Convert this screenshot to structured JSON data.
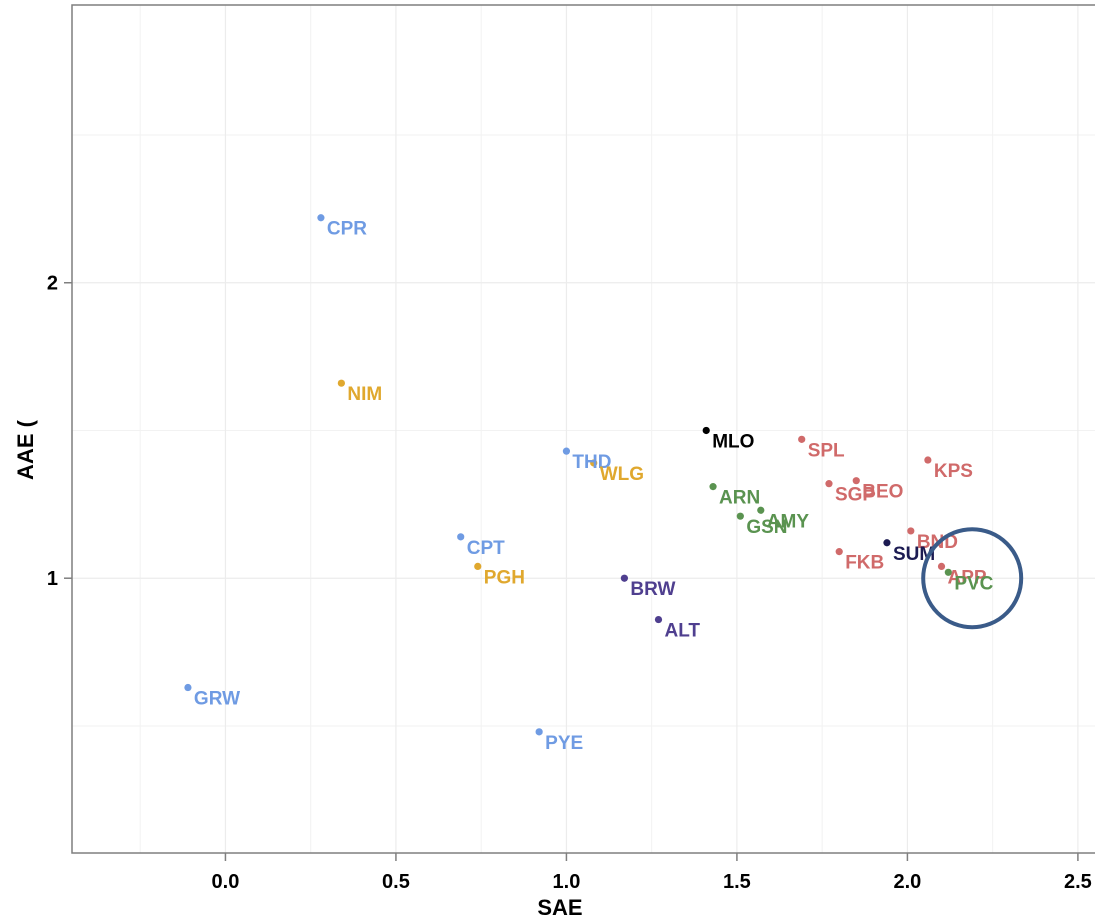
{
  "chart_data": {
    "type": "scatter",
    "title": "",
    "xlabel": "SAE",
    "ylabel": "AAE (",
    "xlim": [
      -0.45,
      2.6
    ],
    "ylim": [
      0.07,
      2.94
    ],
    "x_ticks": [
      0.0,
      0.5,
      1.0,
      1.5,
      2.0,
      2.5
    ],
    "x_tick_labels": [
      "0.0",
      "0.5",
      "1.0",
      "1.5",
      "2.0",
      "2.5"
    ],
    "y_ticks": [
      1,
      2
    ],
    "y_tick_labels": [
      "1",
      "2"
    ],
    "grid": true,
    "legend": "none",
    "colors": {
      "blue": "#6f9be3",
      "orange": "#e0a82e",
      "black": "#000000",
      "red": "#d06a6a",
      "green": "#5a9350",
      "purple": "#4f3f8f",
      "navy": "#1c1b52",
      "circle": "#3a5b89"
    },
    "points": [
      {
        "label": "CPR",
        "x": 0.28,
        "y": 2.22,
        "color": "blue"
      },
      {
        "label": "NIM",
        "x": 0.34,
        "y": 1.66,
        "color": "orange"
      },
      {
        "label": "THD",
        "x": 1.0,
        "y": 1.43,
        "color": "blue"
      },
      {
        "label": "WLG",
        "x": 1.08,
        "y": 1.39,
        "color": "orange"
      },
      {
        "label": "MLO",
        "x": 1.41,
        "y": 1.5,
        "color": "black"
      },
      {
        "label": "SPL",
        "x": 1.69,
        "y": 1.47,
        "color": "red"
      },
      {
        "label": "KPS",
        "x": 2.06,
        "y": 1.4,
        "color": "red"
      },
      {
        "label": "ARN",
        "x": 1.43,
        "y": 1.31,
        "color": "green"
      },
      {
        "label": "SGP",
        "x": 1.77,
        "y": 1.32,
        "color": "red"
      },
      {
        "label": "BEO",
        "x": 1.85,
        "y": 1.33,
        "color": "red"
      },
      {
        "label": "AMY",
        "x": 1.57,
        "y": 1.23,
        "color": "green"
      },
      {
        "label": "GSN",
        "x": 1.51,
        "y": 1.21,
        "color": "green"
      },
      {
        "label": "CPT",
        "x": 0.69,
        "y": 1.14,
        "color": "blue"
      },
      {
        "label": "PGH",
        "x": 0.74,
        "y": 1.04,
        "color": "orange"
      },
      {
        "label": "BND",
        "x": 2.01,
        "y": 1.16,
        "color": "red"
      },
      {
        "label": "FKB",
        "x": 1.8,
        "y": 1.09,
        "color": "red"
      },
      {
        "label": "SUM",
        "x": 1.94,
        "y": 1.12,
        "color": "navy"
      },
      {
        "label": "APP",
        "x": 2.1,
        "y": 1.04,
        "color": "red"
      },
      {
        "label": "PVC",
        "x": 2.12,
        "y": 1.02,
        "color": "green"
      },
      {
        "label": "BRW",
        "x": 1.17,
        "y": 1.0,
        "color": "purple"
      },
      {
        "label": "ALT",
        "x": 1.27,
        "y": 0.86,
        "color": "purple"
      },
      {
        "label": "GRW",
        "x": -0.11,
        "y": 0.63,
        "color": "blue"
      },
      {
        "label": "PYE",
        "x": 0.92,
        "y": 0.48,
        "color": "blue"
      }
    ],
    "annotation": {
      "type": "circle",
      "x": 2.19,
      "y": 1.0,
      "color": "circle"
    }
  }
}
